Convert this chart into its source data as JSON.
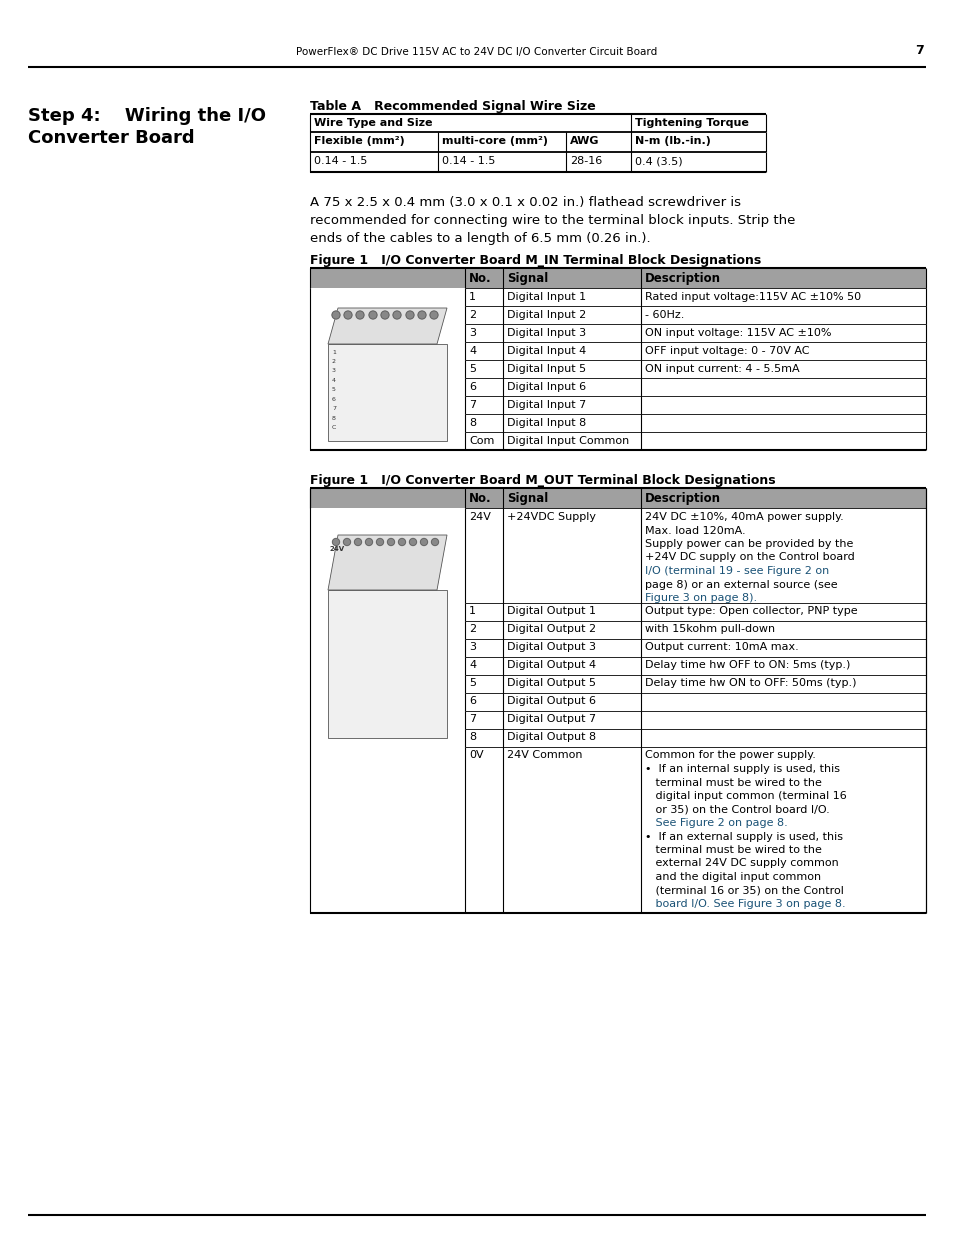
{
  "page_header": "PowerFlex® DC Drive 115V AC to 24V DC I/O Converter Circuit Board",
  "page_number": "7",
  "section_title_line1": "Step 4:  Wiring the I/O",
  "section_title_line2": "Converter Board",
  "table_a_title": "Table A   Recommended Signal Wire Size",
  "table_a_col1_h1": "Wire Type and Size",
  "table_a_col4_h1": "Tightening Torque",
  "table_a_col1_h2": "Flexible (mm²)",
  "table_a_col2_h2": "multi-core (mm²)",
  "table_a_col3_h2": "AWG",
  "table_a_col4_h2": "N-m (lb.-in.)",
  "table_a_data": [
    "0.14 - 1.5",
    "0.14 - 1.5",
    "28-16",
    "0.4 (3.5)"
  ],
  "paragraph_line1": "A 75 x 2.5 x 0.4 mm (3.0 x 0.1 x 0.02 in.) flathead screwdriver is",
  "paragraph_line2": "recommended for connecting wire to the terminal block inputs. Strip the",
  "paragraph_line3": "ends of the cables to a length of 6.5 mm (0.26 in.).",
  "figure1_in_title": "Figure 1   I/O Converter Board M_IN Terminal Block Designations",
  "figure1_in_rows": [
    [
      "1",
      "Digital Input 1",
      "Rated input voltage:115V AC ±10% 50",
      true
    ],
    [
      "2",
      "Digital Input 2",
      "- 60Hz.",
      true
    ],
    [
      "3",
      "Digital Input 3",
      "ON input voltage: 115V AC ±10%",
      true
    ],
    [
      "4",
      "Digital Input 4",
      "OFF input voltage: 0 - 70V AC",
      true
    ],
    [
      "5",
      "Digital Input 5",
      "ON input current: 4 - 5.5mA",
      true
    ],
    [
      "6",
      "Digital Input 6",
      "",
      false
    ],
    [
      "7",
      "Digital Input 7",
      "",
      false
    ],
    [
      "8",
      "Digital Input 8",
      "",
      false
    ],
    [
      "Com",
      "Digital Input Common",
      "",
      false
    ]
  ],
  "figure1_out_title": "Figure 1   I/O Converter Board M_OUT Terminal Block Designations",
  "out_24v_desc": [
    "24V DC ±10%, 40mA power supply.",
    "Max. load 120mA.",
    "Supply power can be provided by the",
    "+24V DC supply on the Control board",
    "I/O (terminal 19 - see Figure 2 on",
    "page 8) or an external source (see",
    "Figure 3 on page 8)."
  ],
  "out_24v_desc_link_lines": [
    4,
    6
  ],
  "out_dig_rows": [
    [
      "1",
      "Digital Output 1",
      "Output type: Open collector, PNP type"
    ],
    [
      "2",
      "Digital Output 2",
      "with 15kohm pull-down"
    ],
    [
      "3",
      "Digital Output 3",
      "Output current: 10mA max."
    ],
    [
      "4",
      "Digital Output 4",
      "Delay time hw OFF to ON: 5ms (typ.)"
    ],
    [
      "5",
      "Digital Output 5",
      "Delay time hw ON to OFF: 50ms (typ.)"
    ],
    [
      "6",
      "Digital Output 6",
      ""
    ],
    [
      "7",
      "Digital Output 7",
      ""
    ],
    [
      "8",
      "Digital Output 8",
      ""
    ]
  ],
  "out_0v_desc": [
    "Common for the power supply.",
    "•  If an internal supply is used, this",
    "   terminal must be wired to the",
    "   digital input common (terminal 16",
    "   or 35) on the Control board I/O.",
    "   See Figure 2 on page 8.",
    "•  If an external supply is used, this",
    "   terminal must be wired to the",
    "   external 24V DC supply common",
    "   and the digital input common",
    "   (terminal 16 or 35) on the Control",
    "   board I/O. See Figure 3 on page 8."
  ],
  "out_0v_link_lines": [
    5,
    11
  ],
  "bg_color": "#ffffff",
  "gray_header": "#a0a0a0",
  "link_color": "#1a5276",
  "text_color": "#000000"
}
